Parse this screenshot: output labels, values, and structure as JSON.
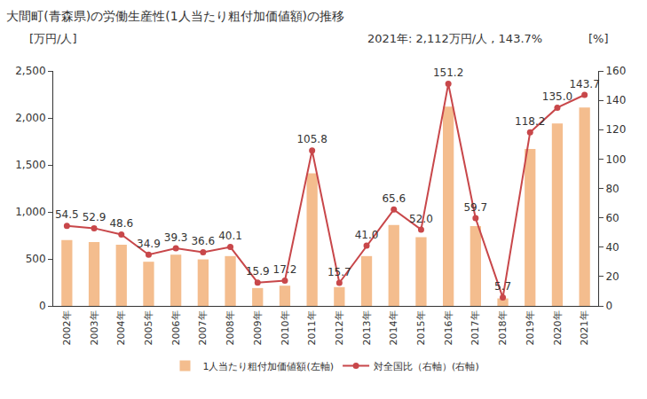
{
  "chart_data": {
    "type": "bar",
    "title": "大間町(青森県)の労働生産性(1人当たり粗付加価値額)の推移",
    "annotation": "2021年: 2,112万円/人 , 143.7%",
    "y_label": "[万円/人]",
    "y2_label": "[%]",
    "categories": [
      "2002年",
      "2003年",
      "2004年",
      "2005年",
      "2006年",
      "2007年",
      "2008年",
      "2009年",
      "2010年",
      "2011年",
      "2012年",
      "2013年",
      "2014年",
      "2015年",
      "2016年",
      "2017年",
      "2018年",
      "2019年",
      "2020年",
      "2021年"
    ],
    "series": [
      {
        "name": "1人当たり粗付加価値額(左軸)",
        "type": "bar",
        "color": "#f4bd8e",
        "axis": "y",
        "values": [
          700,
          680,
          650,
          470,
          545,
          495,
          530,
          190,
          215,
          1410,
          200,
          530,
          860,
          730,
          2120,
          850,
          80,
          1670,
          1940,
          2112
        ]
      },
      {
        "name": "対全国比（右軸）(右軸)",
        "type": "line",
        "color": "#c8474a",
        "axis": "y2",
        "marker": "circle",
        "data_labels": true,
        "values": [
          54.5,
          52.9,
          48.6,
          34.9,
          39.3,
          36.6,
          40.1,
          15.9,
          17.2,
          105.8,
          15.7,
          41.0,
          65.6,
          52.0,
          151.2,
          59.7,
          5.7,
          118.2,
          135.0,
          143.7
        ],
        "value_labels": [
          "54.5",
          "52.9",
          "48.6",
          "34.9",
          "39.3",
          "36.6",
          "40.1",
          "15.9",
          "17.2",
          "105.8",
          "15.7",
          "41.0",
          "65.6",
          "52.0",
          "151.2",
          "59.7",
          "5.7",
          "118.2",
          "135.0",
          "143.7"
        ]
      }
    ],
    "ylim": [
      0,
      2500
    ],
    "yticks": [
      0,
      500,
      {
        "value": 1000,
        "label": "1,000"
      },
      {
        "value": 1500,
        "label": "1,500"
      },
      {
        "value": 2000,
        "label": "2,000"
      },
      {
        "value": 2500,
        "label": "2,500"
      }
    ],
    "y2lim": [
      0,
      160
    ],
    "y2ticks": [
      0,
      20,
      40,
      60,
      80,
      100,
      120,
      140,
      160
    ],
    "grid": false,
    "legend": "bottom"
  }
}
